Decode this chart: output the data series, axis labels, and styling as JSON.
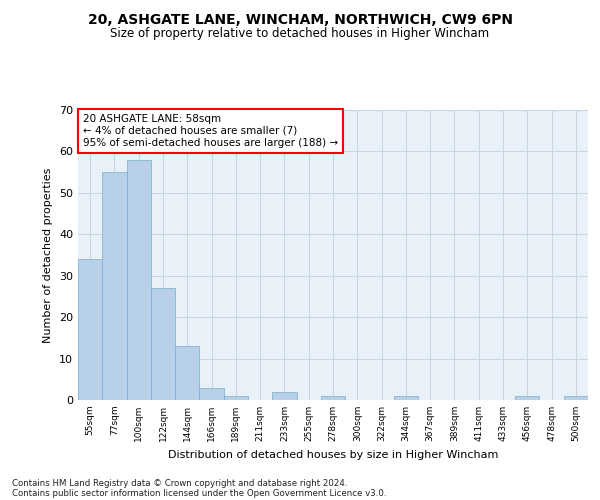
{
  "title_line1": "20, ASHGATE LANE, WINCHAM, NORTHWICH, CW9 6PN",
  "title_line2": "Size of property relative to detached houses in Higher Wincham",
  "xlabel": "Distribution of detached houses by size in Higher Wincham",
  "ylabel": "Number of detached properties",
  "bar_color": "#b8d0e8",
  "bar_edge_color": "#7aaad0",
  "background_color": "#e8f0f8",
  "annotation_text": "20 ASHGATE LANE: 58sqm\n← 4% of detached houses are smaller (7)\n95% of semi-detached houses are larger (188) →",
  "categories": [
    "55sqm",
    "77sqm",
    "100sqm",
    "122sqm",
    "144sqm",
    "166sqm",
    "189sqm",
    "211sqm",
    "233sqm",
    "255sqm",
    "278sqm",
    "300sqm",
    "322sqm",
    "344sqm",
    "367sqm",
    "389sqm",
    "411sqm",
    "433sqm",
    "456sqm",
    "478sqm",
    "500sqm"
  ],
  "values": [
    34,
    55,
    58,
    27,
    13,
    3,
    1,
    0,
    2,
    0,
    1,
    0,
    0,
    1,
    0,
    0,
    0,
    0,
    1,
    0,
    1
  ],
  "ylim": [
    0,
    70
  ],
  "yticks": [
    0,
    10,
    20,
    30,
    40,
    50,
    60,
    70
  ],
  "footer_line1": "Contains HM Land Registry data © Crown copyright and database right 2024.",
  "footer_line2": "Contains public sector information licensed under the Open Government Licence v3.0."
}
